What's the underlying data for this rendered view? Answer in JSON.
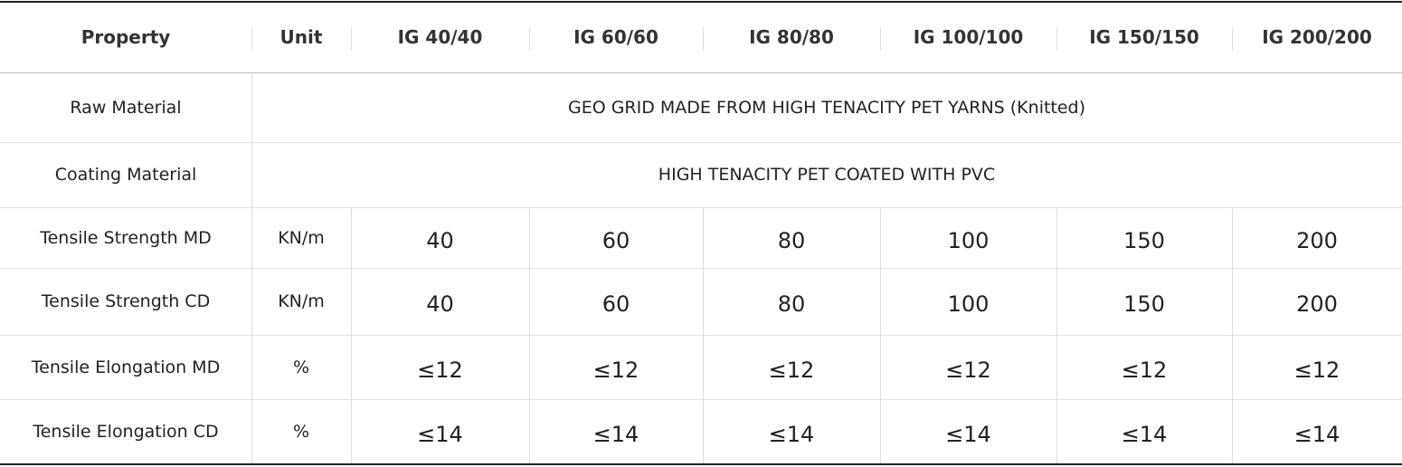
{
  "table": {
    "columns": [
      "Property",
      "Unit",
      "IG 40/40",
      "IG 60/60",
      "IG 80/80",
      "IG 100/100",
      "IG 150/150",
      "IG 200/200"
    ],
    "rows": [
      {
        "property": "Raw Material",
        "value": "GEO GRID MADE FROM HIGH TENACITY PET YARNS (Knitted)"
      },
      {
        "property": "Coating Material",
        "value": "HIGH TENACITY PET COATED WITH PVC"
      },
      {
        "property": "Tensile Strength MD",
        "unit": "KN/m",
        "values": [
          40,
          60,
          80,
          100,
          150,
          200
        ]
      },
      {
        "property": "Tensile Strength CD",
        "unit": "KN/m",
        "values": [
          40,
          60,
          80,
          100,
          150,
          200
        ]
      },
      {
        "property": "Tensile Elongation MD",
        "unit": "%",
        "values": [
          "≤12",
          "≤12",
          "≤12",
          "≤12",
          "≤12",
          "≤12"
        ]
      },
      {
        "property": "Tensile Elongation CD",
        "unit": "%",
        "values": [
          "≤14",
          "≤14",
          "≤14",
          "≤14",
          "≤14",
          "≤14"
        ]
      }
    ]
  }
}
